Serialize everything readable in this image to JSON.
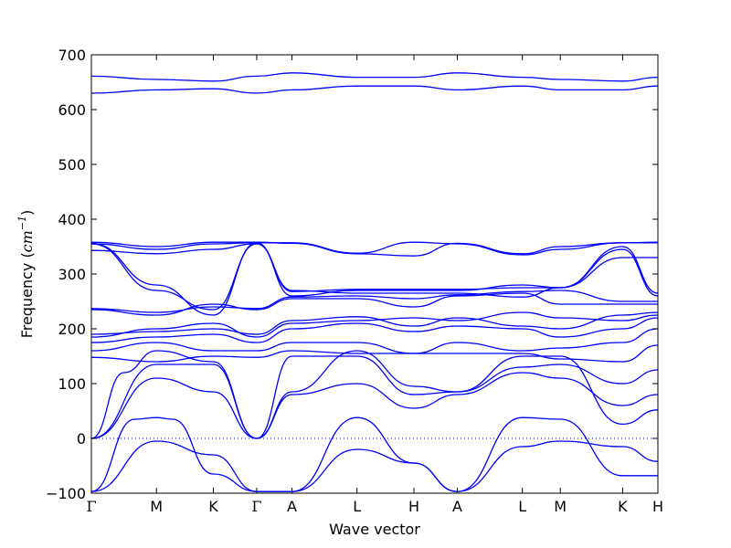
{
  "chart_data": {
    "type": "line",
    "title": "",
    "xlabel": "Wave vector",
    "ylabel": {
      "main": "Frequency (",
      "unit": "cm",
      "sup": "−1",
      "close": ")"
    },
    "ylim": [
      -100,
      700
    ],
    "yticks": [
      -100,
      0,
      100,
      200,
      300,
      400,
      500,
      600,
      700
    ],
    "xlim": [
      0,
      10.45
    ],
    "xticks": [
      {
        "label": "Γ",
        "x": 0
      },
      {
        "label": "M",
        "x": 1.2
      },
      {
        "label": "K",
        "x": 2.25
      },
      {
        "label": "Γ",
        "x": 3.05
      },
      {
        "label": "A",
        "x": 3.7
      },
      {
        "label": "L",
        "x": 4.9
      },
      {
        "label": "H",
        "x": 5.95
      },
      {
        "label": "A",
        "x": 6.75
      },
      {
        "label": "L",
        "x": 7.95
      },
      {
        "label": "M",
        "x": 8.65
      },
      {
        "label": "K",
        "x": 9.8
      },
      {
        "label": "H",
        "x": 10.45
      }
    ],
    "zero_line": true,
    "line_color": "#0000ff",
    "grid": false,
    "series": [
      {
        "x": [
          0,
          1.2,
          2.25,
          3.05,
          3.7,
          4.9,
          5.95,
          6.75,
          7.95,
          8.65,
          9.8,
          10.45
        ],
        "y": [
          -97,
          -5,
          -30,
          -97,
          -97,
          -20,
          -45,
          -97,
          -15,
          -5,
          -15,
          -42
        ]
      },
      {
        "x": [
          0,
          0.8,
          1.2,
          1.5,
          2.25,
          3.05,
          3.7,
          4.9,
          5.95,
          6.75,
          7.95,
          8.65,
          9.8,
          10.45
        ],
        "y": [
          -97,
          35,
          38,
          35,
          -65,
          -97,
          -97,
          38,
          -45,
          -97,
          38,
          35,
          -68,
          -68
        ]
      },
      {
        "x": [
          0,
          1.2,
          2.25,
          3.05,
          3.7,
          4.9,
          5.95,
          6.75,
          7.95,
          8.65,
          9.8,
          10.45
        ],
        "y": [
          0,
          110,
          85,
          0,
          80,
          100,
          55,
          80,
          120,
          110,
          60,
          80
        ]
      },
      {
        "x": [
          0,
          1.2,
          2.25,
          3.05,
          3.7,
          4.9,
          5.95,
          6.75,
          7.95,
          8.65,
          9.8,
          10.45
        ],
        "y": [
          0,
          135,
          135,
          0,
          85,
          160,
          95,
          85,
          130,
          135,
          100,
          125
        ]
      },
      {
        "x": [
          0,
          0.6,
          1.2,
          2.25,
          3.05,
          3.7,
          4.9,
          5.95,
          6.75,
          7.95,
          8.65,
          9.8,
          10.45
        ],
        "y": [
          0,
          120,
          160,
          140,
          0,
          150,
          150,
          80,
          85,
          150,
          150,
          26,
          52
        ]
      },
      {
        "x": [
          0,
          1.2,
          2.25,
          3.05,
          3.7,
          4.9,
          5.95,
          6.75,
          7.95,
          8.65,
          9.8,
          10.45
        ],
        "y": [
          148,
          140,
          150,
          148,
          160,
          155,
          155,
          155,
          155,
          145,
          140,
          170
        ]
      },
      {
        "x": [
          0,
          1.2,
          2.25,
          3.05,
          3.7,
          4.9,
          5.95,
          6.75,
          7.95,
          8.65,
          9.8,
          10.45
        ],
        "y": [
          160,
          175,
          160,
          160,
          175,
          175,
          155,
          175,
          160,
          165,
          175,
          200
        ]
      },
      {
        "x": [
          0,
          1.2,
          2.25,
          3.05,
          3.7,
          4.9,
          5.95,
          6.75,
          7.95,
          8.65,
          9.8,
          10.45
        ],
        "y": [
          175,
          185,
          190,
          175,
          200,
          210,
          195,
          205,
          200,
          185,
          200,
          220
        ]
      },
      {
        "x": [
          0,
          1.2,
          2.25,
          3.05,
          3.7,
          4.9,
          5.95,
          6.75,
          7.95,
          8.65,
          9.8,
          10.45
        ],
        "y": [
          185,
          200,
          210,
          185,
          210,
          215,
          220,
          215,
          230,
          220,
          215,
          225
        ]
      },
      {
        "x": [
          0,
          1.2,
          2.25,
          3.05,
          3.7,
          4.9,
          5.95,
          6.75,
          7.95,
          8.65,
          9.8,
          10.45
        ],
        "y": [
          190,
          195,
          200,
          190,
          215,
          222,
          205,
          220,
          205,
          200,
          225,
          230
        ]
      },
      {
        "x": [
          0,
          1.2,
          2.25,
          3.05,
          3.7,
          4.9,
          5.95,
          6.75,
          7.95,
          8.65,
          9.8,
          10.45
        ],
        "y": [
          235,
          225,
          245,
          235,
          255,
          255,
          240,
          260,
          265,
          245,
          245,
          245
        ]
      },
      {
        "x": [
          0,
          1.2,
          2.25,
          3.05,
          3.7,
          4.9,
          5.95,
          6.75,
          7.95,
          8.65,
          9.8,
          10.45
        ],
        "y": [
          237,
          230,
          240,
          237,
          258,
          260,
          255,
          262,
          268,
          270,
          250,
          250
        ]
      },
      {
        "x": [
          0,
          1.2,
          2.25,
          3.05,
          3.7,
          4.9,
          5.95,
          6.75,
          7.95,
          8.65,
          9.8,
          10.45
        ],
        "y": [
          343,
          337,
          345,
          355,
          270,
          265,
          265,
          265,
          258,
          275,
          330,
          330
        ]
      },
      {
        "x": [
          0,
          1.2,
          2.25,
          3.05,
          3.7,
          4.9,
          5.95,
          6.75,
          7.95,
          8.65,
          9.8,
          10.45
        ],
        "y": [
          355,
          345,
          355,
          357,
          357,
          338,
          358,
          355,
          335,
          345,
          357,
          357
        ]
      },
      {
        "x": [
          0,
          1.2,
          2.25,
          3.05,
          3.7,
          4.9,
          5.95,
          6.75,
          7.95,
          8.65,
          9.8,
          10.45
        ],
        "y": [
          358,
          350,
          358,
          358,
          356,
          337,
          333,
          356,
          337,
          350,
          357,
          358
        ]
      },
      {
        "x": [
          0,
          1.2,
          2.25,
          3.05,
          3.7,
          4.9,
          5.95,
          6.75,
          7.95,
          8.65,
          9.8,
          10.45
        ],
        "y": [
          356,
          280,
          225,
          357,
          260,
          270,
          270,
          270,
          280,
          275,
          350,
          265
        ]
      },
      {
        "x": [
          0,
          1.2,
          2.25,
          3.05,
          3.7,
          4.9,
          5.95,
          6.75,
          7.95,
          8.65,
          9.8,
          10.45
        ],
        "y": [
          355,
          270,
          235,
          355,
          268,
          272,
          272,
          272,
          275,
          275,
          345,
          260
        ]
      },
      {
        "x": [
          0,
          1.2,
          2.25,
          3.05,
          3.7,
          4.9,
          5.95,
          6.75,
          7.95,
          8.65,
          9.8,
          10.45
        ],
        "y": [
          630,
          636,
          638,
          630,
          636,
          643,
          643,
          636,
          643,
          636,
          636,
          643
        ]
      },
      {
        "x": [
          0,
          1.2,
          2.25,
          3.05,
          3.7,
          4.9,
          5.95,
          6.75,
          7.95,
          8.65,
          9.8,
          10.45
        ],
        "y": [
          661,
          655,
          652,
          661,
          667,
          659,
          659,
          667,
          659,
          655,
          652,
          659
        ]
      }
    ]
  }
}
